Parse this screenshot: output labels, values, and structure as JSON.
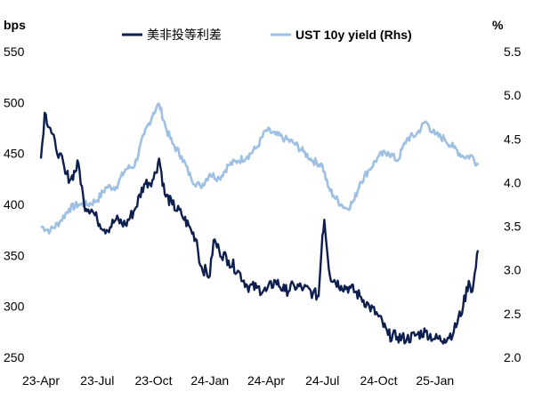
{
  "chart_data": {
    "type": "line",
    "title": "",
    "left_axis_unit": "bps",
    "right_axis_unit": "%",
    "left_ylim": [
      250,
      550
    ],
    "right_ylim": [
      2.0,
      5.5
    ],
    "left_ticks": [
      "550",
      "500",
      "450",
      "400",
      "350",
      "300",
      "250"
    ],
    "right_ticks": [
      "5.5",
      "5.0",
      "4.5",
      "4.0",
      "3.5",
      "3.0",
      "2.5",
      "2.0"
    ],
    "x_range": [
      0,
      24
    ],
    "x_ticks": [
      {
        "label": "23-Apr",
        "month": 0
      },
      {
        "label": "23-Jul",
        "month": 3
      },
      {
        "label": "23-Oct",
        "month": 6
      },
      {
        "label": "24-Jan",
        "month": 9
      },
      {
        "label": "24-Apr",
        "month": 12
      },
      {
        "label": "24-Jul",
        "month": 15
      },
      {
        "label": "24-Oct",
        "month": 18
      },
      {
        "label": "25-Jan",
        "month": 21
      }
    ],
    "legend": {
      "placement": "top-center"
    },
    "series": [
      {
        "name": "美非投等利差",
        "axis": "left",
        "color": "#0d1f4f",
        "points": [
          [
            0,
            445
          ],
          [
            0.2,
            490
          ],
          [
            0.5,
            475
          ],
          [
            0.8,
            455
          ],
          [
            1.0,
            450
          ],
          [
            1.3,
            430
          ],
          [
            1.6,
            425
          ],
          [
            2.0,
            440
          ],
          [
            2.3,
            400
          ],
          [
            2.7,
            395
          ],
          [
            3.0,
            385
          ],
          [
            3.5,
            375
          ],
          [
            4.0,
            385
          ],
          [
            4.5,
            380
          ],
          [
            5.0,
            395
          ],
          [
            5.5,
            420
          ],
          [
            6.0,
            425
          ],
          [
            6.3,
            445
          ],
          [
            6.6,
            410
          ],
          [
            7.0,
            400
          ],
          [
            7.5,
            390
          ],
          [
            8.0,
            375
          ],
          [
            8.3,
            365
          ],
          [
            8.5,
            340
          ],
          [
            9.0,
            330
          ],
          [
            9.2,
            365
          ],
          [
            9.5,
            355
          ],
          [
            10.0,
            345
          ],
          [
            10.5,
            335
          ],
          [
            11.0,
            320
          ],
          [
            11.5,
            318
          ],
          [
            12.0,
            315
          ],
          [
            12.5,
            325
          ],
          [
            13.0,
            315
          ],
          [
            13.5,
            320
          ],
          [
            14.0,
            318
          ],
          [
            14.5,
            313
          ],
          [
            14.8,
            310
          ],
          [
            15.0,
            370
          ],
          [
            15.1,
            385
          ],
          [
            15.4,
            330
          ],
          [
            16.0,
            320
          ],
          [
            16.5,
            318
          ],
          [
            17.0,
            310
          ],
          [
            17.5,
            300
          ],
          [
            18.0,
            290
          ],
          [
            18.5,
            272
          ],
          [
            19.0,
            270
          ],
          [
            19.5,
            268
          ],
          [
            20.0,
            272
          ],
          [
            20.5,
            275
          ],
          [
            21.0,
            268
          ],
          [
            21.5,
            268
          ],
          [
            22.0,
            275
          ],
          [
            22.5,
            300
          ],
          [
            22.8,
            325
          ],
          [
            23.0,
            315
          ],
          [
            23.3,
            355
          ]
        ]
      },
      {
        "name": "UST 10y yield (Rhs)",
        "axis": "right",
        "color": "#9dc0e3",
        "points": [
          [
            0,
            3.5
          ],
          [
            0.5,
            3.45
          ],
          [
            1.0,
            3.55
          ],
          [
            1.5,
            3.7
          ],
          [
            2.0,
            3.75
          ],
          [
            2.5,
            3.75
          ],
          [
            3.0,
            3.8
          ],
          [
            3.5,
            3.95
          ],
          [
            4.0,
            3.95
          ],
          [
            4.5,
            4.15
          ],
          [
            5.0,
            4.2
          ],
          [
            5.5,
            4.55
          ],
          [
            6.0,
            4.8
          ],
          [
            6.3,
            4.9
          ],
          [
            6.7,
            4.6
          ],
          [
            7.0,
            4.45
          ],
          [
            7.5,
            4.3
          ],
          [
            8.0,
            4.05
          ],
          [
            8.5,
            3.95
          ],
          [
            9.0,
            4.1
          ],
          [
            9.5,
            4.05
          ],
          [
            10.0,
            4.2
          ],
          [
            10.5,
            4.25
          ],
          [
            11.0,
            4.3
          ],
          [
            11.5,
            4.4
          ],
          [
            12.0,
            4.6
          ],
          [
            12.5,
            4.55
          ],
          [
            13.0,
            4.5
          ],
          [
            13.5,
            4.45
          ],
          [
            14.0,
            4.35
          ],
          [
            14.5,
            4.25
          ],
          [
            15.0,
            4.2
          ],
          [
            15.3,
            3.95
          ],
          [
            15.6,
            3.85
          ],
          [
            16.0,
            3.75
          ],
          [
            16.3,
            3.7
          ],
          [
            16.7,
            3.8
          ],
          [
            17.0,
            4.0
          ],
          [
            17.5,
            4.15
          ],
          [
            18.0,
            4.3
          ],
          [
            18.5,
            4.35
          ],
          [
            19.0,
            4.25
          ],
          [
            19.5,
            4.5
          ],
          [
            20.0,
            4.55
          ],
          [
            20.5,
            4.7
          ],
          [
            21.0,
            4.55
          ],
          [
            21.5,
            4.5
          ],
          [
            22.0,
            4.4
          ],
          [
            22.5,
            4.3
          ],
          [
            23.0,
            4.3
          ],
          [
            23.3,
            4.2
          ]
        ]
      }
    ]
  }
}
